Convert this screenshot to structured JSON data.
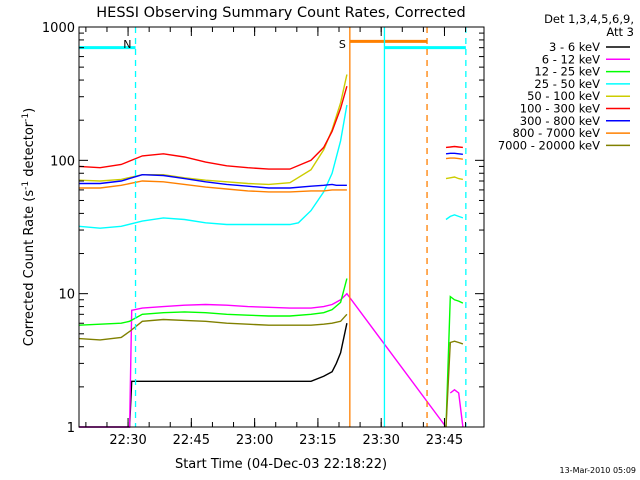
{
  "chart_data": {
    "type": "line",
    "title": "HESSI Observing Summary Count Rates, Corrected",
    "xlabel": "Start Time (04-Dec-03 22:18:22)",
    "ylabel_parts": [
      "Corrected Count Rate (s",
      "-1",
      " detector",
      "-1",
      ")"
    ],
    "yscale": "log",
    "ylim": [
      1,
      1000
    ],
    "xlim_minutes": [
      0,
      96
    ],
    "xticks": [
      {
        "minute": 11.63,
        "label": "22:30"
      },
      {
        "minute": 26.63,
        "label": "22:45"
      },
      {
        "minute": 41.63,
        "label": "23:00"
      },
      {
        "minute": 56.63,
        "label": "23:15"
      },
      {
        "minute": 71.63,
        "label": "23:30"
      },
      {
        "minute": 86.63,
        "label": "23:45"
      }
    ],
    "yticks": [
      {
        "value": 1,
        "label": "1"
      },
      {
        "value": 10,
        "label": "10"
      },
      {
        "value": 100,
        "label": "100"
      },
      {
        "value": 1000,
        "label": "1000"
      }
    ],
    "legend": {
      "title": "Det 1,3,4,5,6,9,",
      "subtitle": "Att 3",
      "placement": "outside-right"
    },
    "series": [
      {
        "name": "3 - 6 keV",
        "color": "#000000",
        "x": [
          0,
          12,
          12.5,
          15,
          20,
          25,
          30,
          35,
          40,
          45,
          50,
          55,
          58,
          60,
          61,
          62,
          63.5
        ],
        "y": [
          1,
          1,
          2.2,
          2.2,
          2.2,
          2.2,
          2.2,
          2.2,
          2.2,
          2.2,
          2.2,
          2.2,
          2.4,
          2.6,
          3,
          3.6,
          6
        ]
      },
      {
        "name": "6 - 12 keV",
        "color": "#ff00ff",
        "x": [
          0,
          12,
          12.5,
          15,
          20,
          25,
          30,
          35,
          40,
          45,
          50,
          55,
          58,
          60,
          62,
          63.5,
          87,
          88,
          89,
          90,
          91
        ],
        "y": [
          1,
          1,
          7.5,
          7.8,
          8,
          8.2,
          8.3,
          8.2,
          8,
          7.9,
          7.8,
          7.8,
          8,
          8.3,
          9,
          10,
          1,
          1.8,
          1.9,
          1.8,
          1
        ],
        "breaks_after": [
          16
        ]
      },
      {
        "name": "12 - 25 keV",
        "color": "#00ff00",
        "x": [
          0,
          5,
          10,
          12,
          15,
          20,
          25,
          30,
          35,
          40,
          45,
          50,
          55,
          58,
          60,
          62,
          63.5,
          87,
          88,
          89,
          90,
          91
        ],
        "y": [
          5.8,
          5.9,
          6,
          6.2,
          7,
          7.2,
          7.3,
          7.2,
          7,
          6.9,
          6.8,
          6.8,
          7,
          7.2,
          7.6,
          8.6,
          13,
          1,
          9.5,
          9,
          8.8,
          8.5
        ],
        "breaks_after": [
          16
        ]
      },
      {
        "name": "25 - 50 keV",
        "color": "#00ffff",
        "x": [
          0,
          5,
          10,
          15,
          20,
          25,
          30,
          35,
          40,
          45,
          50,
          52,
          55,
          58,
          60,
          62,
          63.5,
          87,
          88,
          89,
          90,
          91
        ],
        "y": [
          32,
          31,
          32,
          35,
          37,
          36,
          34,
          33,
          33,
          33,
          33,
          34,
          42,
          58,
          80,
          140,
          260,
          36,
          38,
          39,
          38,
          37
        ],
        "breaks_after": [
          16
        ]
      },
      {
        "name": "50 - 100 keV",
        "color": "#cccc00",
        "x": [
          0,
          5,
          10,
          15,
          20,
          25,
          30,
          35,
          40,
          45,
          50,
          55,
          58,
          60,
          62,
          63.5,
          87,
          88,
          89,
          90,
          91
        ],
        "y": [
          71,
          70,
          72,
          78,
          78,
          74,
          71,
          69,
          67,
          66,
          68,
          85,
          120,
          170,
          270,
          440,
          73,
          74,
          75,
          73,
          72
        ],
        "breaks_after": [
          15
        ]
      },
      {
        "name": "100 - 300 keV",
        "color": "#ff0000",
        "x": [
          0,
          5,
          10,
          15,
          20,
          25,
          30,
          35,
          40,
          45,
          50,
          55,
          58,
          60,
          62,
          63.5,
          87,
          88,
          89,
          90,
          91
        ],
        "y": [
          90,
          88,
          93,
          108,
          112,
          106,
          97,
          91,
          88,
          86,
          86,
          100,
          125,
          165,
          245,
          360,
          125,
          126,
          127,
          126,
          125
        ],
        "breaks_after": [
          15
        ]
      },
      {
        "name": "300 - 800 keV",
        "color": "#0000ff",
        "x": [
          0,
          5,
          10,
          15,
          20,
          25,
          30,
          35,
          40,
          45,
          50,
          55,
          58,
          60,
          61,
          63.5,
          87,
          88,
          89,
          90,
          91
        ],
        "y": [
          67,
          67,
          70,
          78,
          77,
          73,
          69,
          66,
          64,
          62,
          62,
          64,
          65,
          66,
          65,
          65,
          112,
          113,
          113,
          112,
          111
        ],
        "breaks_after": [
          15
        ]
      },
      {
        "name": "800 - 7000 keV",
        "color": "#ff8000",
        "x": [
          0,
          5,
          10,
          15,
          20,
          25,
          30,
          35,
          40,
          45,
          50,
          55,
          58,
          60,
          62,
          63.5,
          87,
          88,
          89,
          90,
          91
        ],
        "y": [
          62,
          62,
          65,
          70,
          69,
          66,
          63,
          61,
          59,
          58,
          58,
          59,
          59,
          60,
          60,
          60,
          103,
          104,
          104,
          103,
          102
        ],
        "breaks_after": [
          15
        ]
      },
      {
        "name": "7000 - 20000 keV",
        "color": "#808000",
        "x": [
          0,
          5,
          10,
          12,
          15,
          20,
          25,
          30,
          35,
          40,
          45,
          50,
          55,
          58,
          60,
          62,
          63.5,
          87,
          88,
          89,
          90,
          91
        ],
        "y": [
          4.6,
          4.5,
          4.7,
          5.2,
          6.2,
          6.4,
          6.3,
          6.2,
          6,
          5.9,
          5.8,
          5.8,
          5.8,
          5.9,
          6,
          6.2,
          7,
          1,
          4.3,
          4.4,
          4.3,
          4.2
        ],
        "breaks_after": [
          16
        ]
      }
    ],
    "annotations": [
      {
        "type": "bar",
        "label": "",
        "color": "#00ffff",
        "x_start": 0,
        "x_end": 13.4,
        "y": 700
      },
      {
        "type": "vline",
        "label": "N",
        "color": "#00ffff",
        "x": 13.4,
        "dashed": true
      },
      {
        "type": "vline",
        "label": "S",
        "color": "#ff8000",
        "x": 64.2,
        "dashed": false
      },
      {
        "type": "bar",
        "label": "",
        "color": "#ff8000",
        "x_start": 64.2,
        "x_end": 82.5,
        "y": 780
      },
      {
        "type": "vline",
        "label": "",
        "color": "#00ffff",
        "x": 72.4,
        "dashed": false
      },
      {
        "type": "bar",
        "label": "",
        "color": "#00ffff",
        "x_start": 72.4,
        "x_end": 91.7,
        "y": 700
      },
      {
        "type": "vline",
        "label": "",
        "color": "#ff8000",
        "x": 82.5,
        "dashed": true
      },
      {
        "type": "vline",
        "label": "",
        "color": "#00ffff",
        "x": 91.7,
        "dashed": true
      }
    ],
    "footer": "13-Mar-2010 05:09"
  }
}
